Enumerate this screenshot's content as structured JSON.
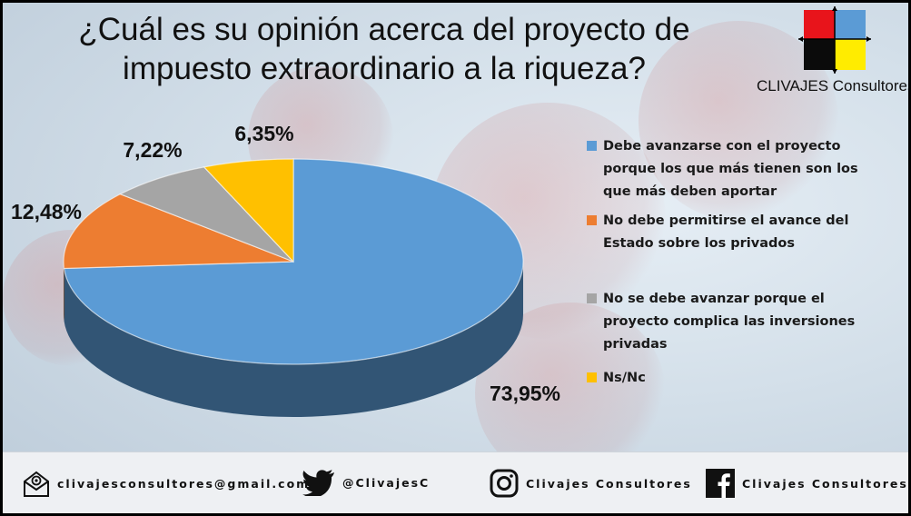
{
  "title_line1": "¿Cuál es su opinión acerca del proyecto de",
  "title_line2": "impuesto extraordinario a la riqueza?",
  "brand": {
    "name": "CLIVAJES Consultores",
    "logo_colors": [
      "#e8141b",
      "#5b9bd5",
      "#0b0b0b",
      "#ffec00"
    ]
  },
  "chart_data": {
    "type": "pie",
    "title": "¿Cuál es su opinión acerca del proyecto de impuesto extraordinario a la riqueza?",
    "labels": [
      "Debe avanzarse con el proyecto porque los que más tienen son los que más deben aportar",
      "No debe permitirse el avance del Estado sobre los privados",
      "No se debe avanzar porque el proyecto complica las inversiones privadas",
      "Ns/Nc"
    ],
    "values": [
      73.95,
      12.48,
      7.22,
      6.35
    ],
    "value_labels": [
      "73,95%",
      "12,48%",
      "7,22%",
      "6,35%"
    ],
    "colors": [
      "#5b9bd5",
      "#ed7d31",
      "#a5a5a5",
      "#ffc000"
    ],
    "style": "3d",
    "legend_position": "right"
  },
  "footer": {
    "email": "clivajesconsultores@gmail.com",
    "twitter": "@ClivajesC",
    "instagram": "Clivajes Consultores",
    "facebook": "Clivajes Consultores"
  },
  "icons": [
    "email-icon",
    "twitter-icon",
    "instagram-icon",
    "facebook-icon"
  ]
}
